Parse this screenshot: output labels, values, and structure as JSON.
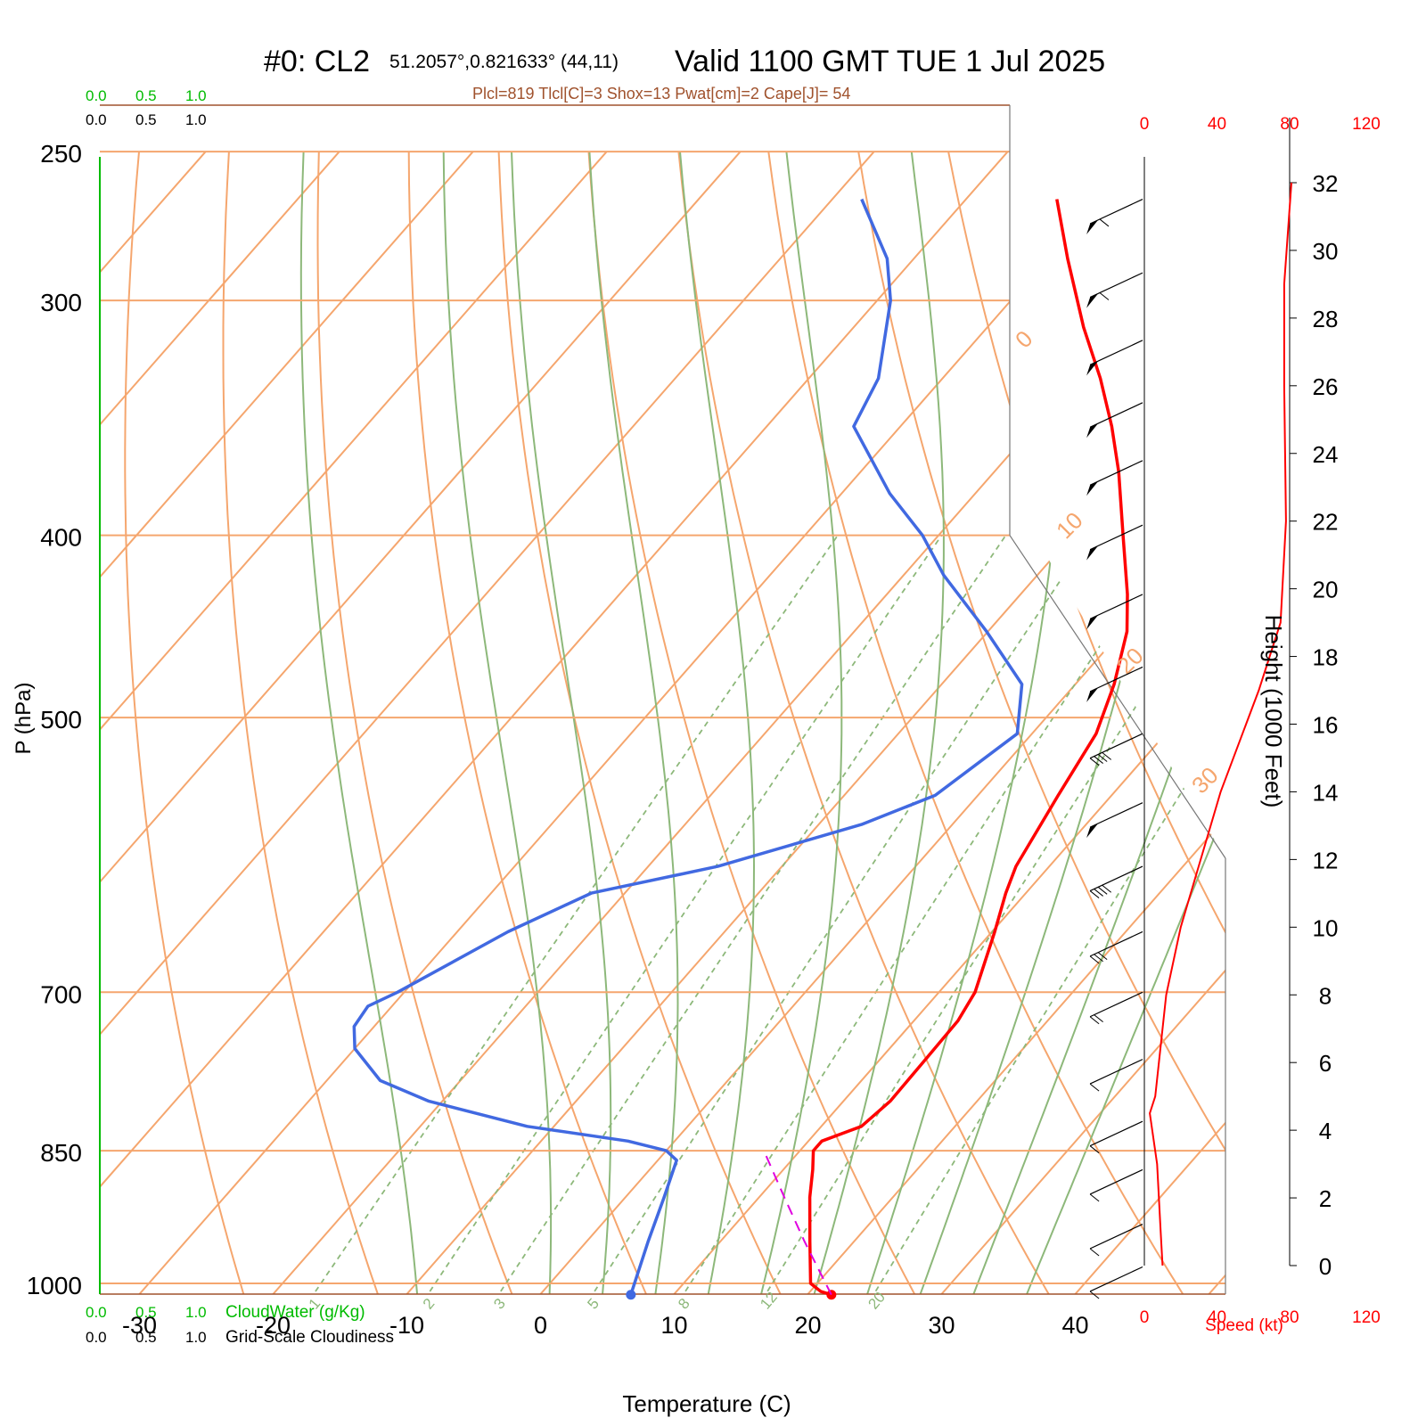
{
  "header": {
    "station": "#0: CL2",
    "location": "51.2057°,0.821633° (44,11)",
    "valid": "Valid 1100 GMT TUE 1 Jul 2025",
    "indices": "Plcl=819 Tlcl[C]=3 Shox=13 Pwat[cm]=2 Cape[J]= 54"
  },
  "axes": {
    "xlabel": "Temperature (C)",
    "ylabel": "P (hPa)",
    "height_label": "Height (1000 Feet)",
    "speed_label": "Speed (kt)"
  },
  "cloud_scale": {
    "cloud_water_label": "CloudWater (g/Kg)",
    "cloudiness_label": "Grid-Scale Cloudiness",
    "ticks": [
      "0.0",
      "0.5",
      "1.0"
    ]
  },
  "colors": {
    "temperature": "#ff0000",
    "dewpoint": "#4169e1",
    "isotherm": "#f5a66e",
    "dry_adiabat": "#8db87a",
    "mixing_ratio": "#8db87a",
    "parcel": "#e000e0",
    "cloud_water": "#00bb00",
    "header_indices": "#a0522d"
  },
  "chart_data": {
    "type": "line",
    "title": "Valid 1100 GMT TUE 1 Jul 2025",
    "xlabel": "Temperature (C)",
    "ylabel": "P (hPa)",
    "pressure_ticks": [
      250,
      300,
      400,
      500,
      700,
      850,
      1000
    ],
    "temperature_ticks": [
      -30,
      -20,
      -10,
      0,
      10,
      20,
      30,
      40
    ],
    "xlim": [
      -33,
      47
    ],
    "ylim": [
      1050,
      250
    ],
    "skew": "log-p skew-T",
    "isotherm_labels": [
      {
        "t": 10,
        "text": "10"
      },
      {
        "t": 0,
        "text": "0"
      },
      {
        "t": -10,
        "text": "-10"
      },
      {
        "t": -20,
        "text": "-20"
      },
      {
        "t": -30,
        "text": "-30"
      }
    ],
    "isotherm_labels_right": [
      {
        "t": 0,
        "text": "0"
      },
      {
        "t": 10,
        "text": "10"
      },
      {
        "t": 20,
        "text": "20"
      },
      {
        "t": 30,
        "text": "30"
      }
    ],
    "mixing_ratio_labels": [
      "1",
      "2",
      "3",
      "5",
      "8",
      "12",
      "20"
    ],
    "series": [
      {
        "name": "Temperature",
        "points": [
          {
            "p": 1014,
            "t": 21.8
          },
          {
            "p": 1010,
            "t": 20.8
          },
          {
            "p": 1000,
            "t": 19.5
          },
          {
            "p": 950,
            "t": 16.7
          },
          {
            "p": 900,
            "t": 13.8
          },
          {
            "p": 870,
            "t": 12.2
          },
          {
            "p": 850,
            "t": 11.0
          },
          {
            "p": 840,
            "t": 11.0
          },
          {
            "p": 825,
            "t": 13.0
          },
          {
            "p": 800,
            "t": 13.5
          },
          {
            "p": 760,
            "t": 13.4
          },
          {
            "p": 725,
            "t": 13.3
          },
          {
            "p": 700,
            "t": 12.7
          },
          {
            "p": 650,
            "t": 10.2
          },
          {
            "p": 620,
            "t": 8.5
          },
          {
            "p": 600,
            "t": 7.5
          },
          {
            "p": 550,
            "t": 6.0
          },
          {
            "p": 510,
            "t": 4.8
          },
          {
            "p": 480,
            "t": 2.9
          },
          {
            "p": 450,
            "t": 0.4
          },
          {
            "p": 430,
            "t": -2.0
          },
          {
            "p": 400,
            "t": -6.2
          },
          {
            "p": 370,
            "t": -10.7
          },
          {
            "p": 350,
            "t": -14.2
          },
          {
            "p": 330,
            "t": -18.2
          },
          {
            "p": 310,
            "t": -22.8
          },
          {
            "p": 285,
            "t": -28.5
          },
          {
            "p": 265,
            "t": -33.2
          }
        ]
      },
      {
        "name": "Dewpoint",
        "points": [
          {
            "p": 1014,
            "t": 6.8
          },
          {
            "p": 950,
            "t": 4.6
          },
          {
            "p": 900,
            "t": 2.9
          },
          {
            "p": 860,
            "t": 1.4
          },
          {
            "p": 850,
            "t": 0.0
          },
          {
            "p": 840,
            "t": -3.5
          },
          {
            "p": 825,
            "t": -12.0
          },
          {
            "p": 800,
            "t": -21.0
          },
          {
            "p": 780,
            "t": -26.0
          },
          {
            "p": 750,
            "t": -30.0
          },
          {
            "p": 730,
            "t": -31.5
          },
          {
            "p": 712,
            "t": -31.8
          },
          {
            "p": 700,
            "t": -30.5
          },
          {
            "p": 650,
            "t": -26.2
          },
          {
            "p": 620,
            "t": -22.5
          },
          {
            "p": 600,
            "t": -14.8
          },
          {
            "p": 570,
            "t": -6.8
          },
          {
            "p": 550,
            "t": -3.2
          },
          {
            "p": 510,
            "t": -1.1
          },
          {
            "p": 480,
            "t": -4.0
          },
          {
            "p": 450,
            "t": -10.1
          },
          {
            "p": 420,
            "t": -17.0
          },
          {
            "p": 400,
            "t": -21.2
          },
          {
            "p": 380,
            "t": -26.4
          },
          {
            "p": 350,
            "t": -33.5
          },
          {
            "p": 330,
            "t": -34.8
          },
          {
            "p": 300,
            "t": -39.0
          },
          {
            "p": 285,
            "t": -42.0
          },
          {
            "p": 265,
            "t": -47.8
          }
        ]
      },
      {
        "name": "Parcel",
        "points": [
          {
            "p": 1014,
            "t": 21.8
          },
          {
            "p": 950,
            "t": 16.3
          },
          {
            "p": 900,
            "t": 11.9
          },
          {
            "p": 850,
            "t": 7.3
          }
        ]
      }
    ],
    "wind_barbs": [
      {
        "p": 265,
        "speed": 60
      },
      {
        "p": 290,
        "speed": 60
      },
      {
        "p": 315,
        "speed": 55
      },
      {
        "p": 340,
        "speed": 55
      },
      {
        "p": 365,
        "speed": 55
      },
      {
        "p": 395,
        "speed": 50
      },
      {
        "p": 430,
        "speed": 50
      },
      {
        "p": 470,
        "speed": 50
      },
      {
        "p": 510,
        "speed": 45
      },
      {
        "p": 555,
        "speed": 50
      },
      {
        "p": 600,
        "speed": 40
      },
      {
        "p": 650,
        "speed": 30
      },
      {
        "p": 700,
        "speed": 25
      },
      {
        "p": 760,
        "speed": 15
      },
      {
        "p": 820,
        "speed": 10
      },
      {
        "p": 870,
        "speed": 10
      },
      {
        "p": 930,
        "speed": 15
      },
      {
        "p": 980,
        "speed": 15
      }
    ],
    "wind_speed_ticks": [
      0,
      40,
      80,
      120
    ],
    "wind_speed_profile": [
      {
        "h": 0,
        "kt": 10
      },
      {
        "h": 1,
        "kt": 9
      },
      {
        "h": 3,
        "kt": 7
      },
      {
        "h": 4.5,
        "kt": 3
      },
      {
        "h": 5,
        "kt": 6
      },
      {
        "h": 8,
        "kt": 12
      },
      {
        "h": 10,
        "kt": 20
      },
      {
        "h": 14,
        "kt": 42
      },
      {
        "h": 17,
        "kt": 63
      },
      {
        "h": 19,
        "kt": 75
      },
      {
        "h": 22,
        "kt": 78
      },
      {
        "h": 26,
        "kt": 77
      },
      {
        "h": 29,
        "kt": 77
      },
      {
        "h": 32,
        "kt": 81
      }
    ],
    "height_ticks": [
      0,
      2,
      4,
      6,
      8,
      10,
      12,
      14,
      16,
      18,
      20,
      22,
      24,
      26,
      28,
      30,
      32
    ]
  }
}
